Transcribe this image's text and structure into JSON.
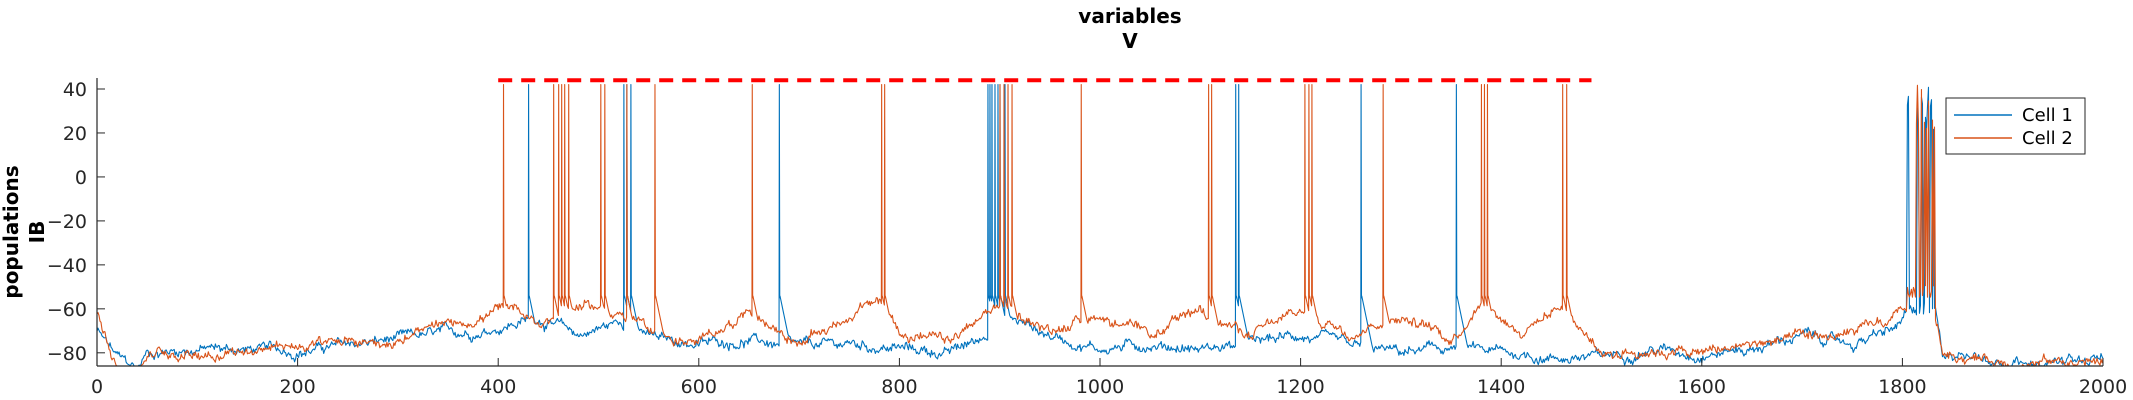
{
  "chart_data": {
    "type": "line",
    "title": "variables",
    "subtitle": "V",
    "ylabel": "populations",
    "ylabel_sub": "IB",
    "xlabel": "",
    "xlim": [
      0,
      2000
    ],
    "ylim": [
      -86,
      45
    ],
    "x_ticks": [
      0,
      200,
      400,
      600,
      800,
      1000,
      1200,
      1400,
      1600,
      1800,
      2000
    ],
    "y_ticks": [
      40,
      20,
      0,
      -20,
      -40,
      -60,
      -80
    ],
    "legend_position": "top-right",
    "grid": false,
    "series": [
      {
        "name": "Cell 1",
        "color": "#0072BD",
        "base": [
          [
            0,
            -70
          ],
          [
            20,
            -82
          ],
          [
            40,
            -88
          ],
          [
            50,
            -80
          ],
          [
            100,
            -78
          ],
          [
            200,
            -79
          ],
          [
            300,
            -74
          ],
          [
            380,
            -70
          ],
          [
            400,
            -68
          ],
          [
            440,
            -64
          ],
          [
            480,
            -72
          ],
          [
            520,
            -66
          ],
          [
            560,
            -74
          ],
          [
            600,
            -76
          ],
          [
            650,
            -74
          ],
          [
            700,
            -78
          ],
          [
            750,
            -76
          ],
          [
            800,
            -78
          ],
          [
            850,
            -80
          ],
          [
            880,
            -74
          ],
          [
            910,
            -64
          ],
          [
            950,
            -72
          ],
          [
            1000,
            -78
          ],
          [
            1050,
            -76
          ],
          [
            1100,
            -78
          ],
          [
            1150,
            -76
          ],
          [
            1200,
            -72
          ],
          [
            1250,
            -78
          ],
          [
            1300,
            -80
          ],
          [
            1350,
            -78
          ],
          [
            1400,
            -80
          ],
          [
            1450,
            -82
          ],
          [
            1500,
            -82
          ],
          [
            1550,
            -78
          ],
          [
            1600,
            -80
          ],
          [
            1650,
            -78
          ],
          [
            1700,
            -72
          ],
          [
            1750,
            -76
          ],
          [
            1790,
            -70
          ],
          [
            1800,
            -66
          ],
          [
            1810,
            -56
          ],
          [
            1830,
            -52
          ],
          [
            1840,
            -80
          ],
          [
            1900,
            -84
          ],
          [
            2000,
            -84
          ]
        ],
        "spikes": [
          430,
          525,
          528,
          532,
          680,
          888,
          890,
          892,
          895,
          898,
          900,
          905,
          1135,
          1138,
          1260,
          1355
        ]
      },
      {
        "name": "Cell 2",
        "color": "#D95319",
        "base": [
          [
            0,
            -62
          ],
          [
            20,
            -84
          ],
          [
            40,
            -90
          ],
          [
            50,
            -80
          ],
          [
            100,
            -80
          ],
          [
            200,
            -77
          ],
          [
            300,
            -74
          ],
          [
            370,
            -66
          ],
          [
            400,
            -60
          ],
          [
            440,
            -66
          ],
          [
            480,
            -58
          ],
          [
            520,
            -62
          ],
          [
            560,
            -72
          ],
          [
            600,
            -76
          ],
          [
            650,
            -60
          ],
          [
            700,
            -76
          ],
          [
            780,
            -56
          ],
          [
            800,
            -70
          ],
          [
            850,
            -76
          ],
          [
            900,
            -58
          ],
          [
            950,
            -70
          ],
          [
            1000,
            -62
          ],
          [
            1050,
            -74
          ],
          [
            1100,
            -60
          ],
          [
            1150,
            -72
          ],
          [
            1200,
            -62
          ],
          [
            1250,
            -70
          ],
          [
            1300,
            -62
          ],
          [
            1350,
            -74
          ],
          [
            1380,
            -56
          ],
          [
            1420,
            -70
          ],
          [
            1460,
            -58
          ],
          [
            1500,
            -80
          ],
          [
            1550,
            -78
          ],
          [
            1600,
            -80
          ],
          [
            1650,
            -76
          ],
          [
            1700,
            -74
          ],
          [
            1750,
            -72
          ],
          [
            1790,
            -66
          ],
          [
            1800,
            -62
          ],
          [
            1830,
            -58
          ],
          [
            1840,
            -80
          ],
          [
            1900,
            -84
          ],
          [
            2000,
            -84
          ]
        ],
        "spikes": [
          405,
          455,
          460,
          463,
          466,
          470,
          502,
          506,
          528,
          556,
          653,
          782,
          785,
          900,
          904,
          908,
          912,
          981,
          1108,
          1111,
          1204,
          1208,
          1211,
          1282,
          1380,
          1383,
          1386,
          1461,
          1465
        ]
      }
    ],
    "burst": {
      "x_start": 1805,
      "x_end": 1832
    },
    "reference_line": {
      "x_start": 400,
      "x_end": 1490,
      "y": 44,
      "color": "#FF0000",
      "style": "dashed"
    }
  }
}
